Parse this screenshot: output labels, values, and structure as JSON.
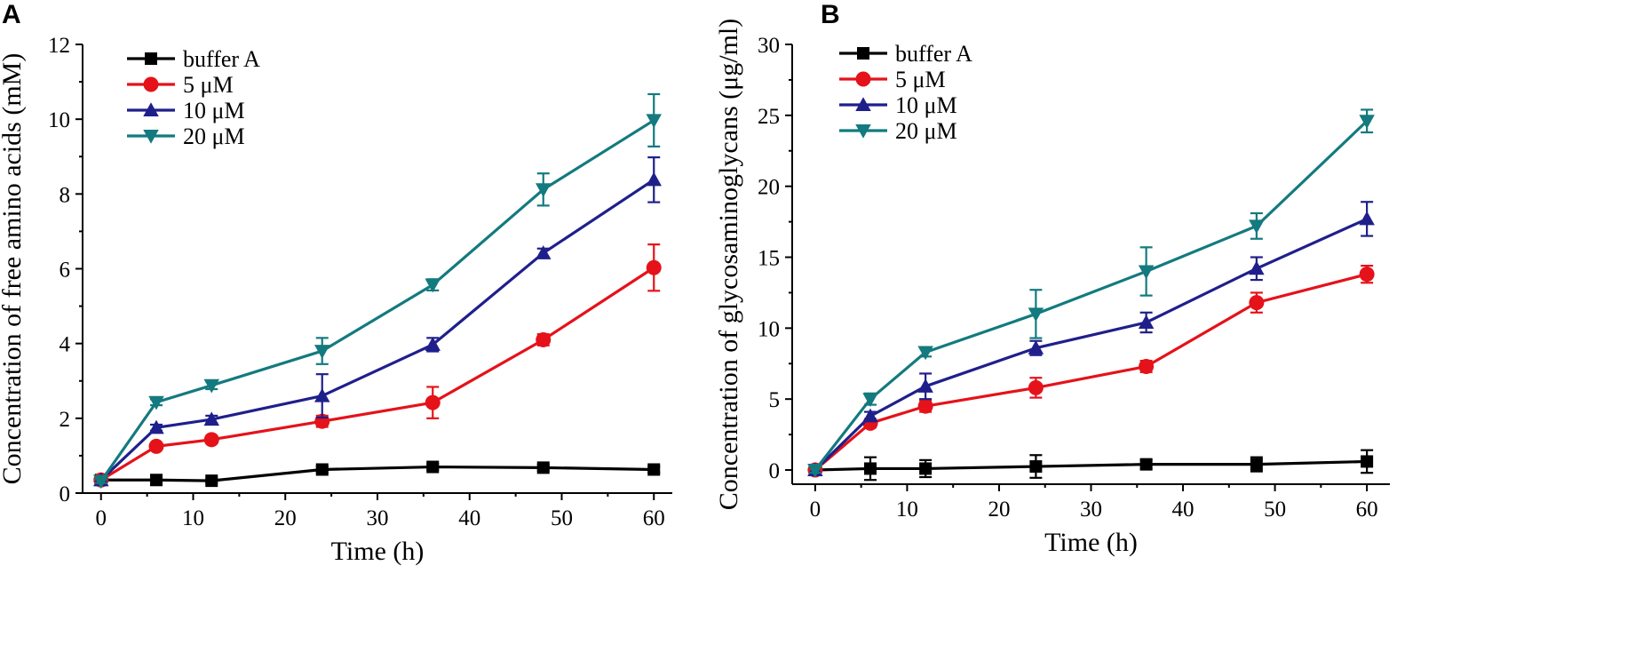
{
  "chart_data": [
    {
      "panel": "A",
      "type": "line",
      "xlabel": "Time (h)",
      "ylabel": "Concentration of free amino acids (mM)",
      "xlim": [
        -2,
        62
      ],
      "ylim": [
        0,
        12
      ],
      "xticks": [
        0,
        10,
        20,
        30,
        40,
        50,
        60
      ],
      "yticks": [
        0,
        2,
        4,
        6,
        8,
        10,
        12
      ],
      "x": [
        0,
        6,
        12,
        24,
        36,
        48,
        60
      ],
      "legend_position": "top-left",
      "series": [
        {
          "name": "buffer A",
          "color": "#000000",
          "marker": "square",
          "values": [
            0.35,
            0.35,
            0.33,
            0.63,
            0.7,
            0.68,
            0.63
          ],
          "errors": [
            0.05,
            0.05,
            0.05,
            0.08,
            0.08,
            0.08,
            0.08
          ]
        },
        {
          "name": "5 μM",
          "color": "#e5121a",
          "marker": "circle",
          "values": [
            0.35,
            1.25,
            1.43,
            1.92,
            2.42,
            4.1,
            6.03
          ],
          "errors": [
            0.05,
            0.08,
            0.1,
            0.15,
            0.42,
            0.15,
            0.62
          ]
        },
        {
          "name": "10 μM",
          "color": "#1f1f8c",
          "marker": "triangle-up",
          "values": [
            0.35,
            1.75,
            1.97,
            2.6,
            3.97,
            6.42,
            8.38
          ],
          "errors": [
            0.05,
            0.08,
            0.1,
            0.58,
            0.18,
            0.12,
            0.6
          ]
        },
        {
          "name": "20 μM",
          "color": "#137a7f",
          "marker": "triangle-down",
          "values": [
            0.32,
            2.43,
            2.88,
            3.8,
            5.57,
            8.12,
            9.97
          ],
          "errors": [
            0.05,
            0.08,
            0.1,
            0.35,
            0.15,
            0.43,
            0.7
          ]
        }
      ]
    },
    {
      "panel": "B",
      "type": "line",
      "xlabel": "Time (h)",
      "ylabel": "Concentration of glycosaminoglycans (μg/ml)",
      "xlim": [
        -2.5,
        62.5
      ],
      "ylim": [
        -1,
        30
      ],
      "xticks": [
        0,
        10,
        20,
        30,
        40,
        50,
        60
      ],
      "yticks": [
        0,
        5,
        10,
        15,
        20,
        25,
        30
      ],
      "x": [
        0,
        6,
        12,
        24,
        36,
        48,
        60
      ],
      "legend_position": "top-left",
      "series": [
        {
          "name": "buffer A",
          "color": "#000000",
          "marker": "square",
          "values": [
            0.0,
            0.1,
            0.1,
            0.25,
            0.4,
            0.4,
            0.6
          ],
          "errors": [
            0.2,
            0.8,
            0.6,
            0.8,
            0.3,
            0.5,
            0.8
          ]
        },
        {
          "name": "5 μM",
          "color": "#e5121a",
          "marker": "circle",
          "values": [
            0.0,
            3.3,
            4.5,
            5.8,
            7.3,
            11.8,
            13.8
          ],
          "errors": [
            0.2,
            0.3,
            0.4,
            0.7,
            0.4,
            0.7,
            0.6
          ]
        },
        {
          "name": "10 μM",
          "color": "#1f1f8c",
          "marker": "triangle-up",
          "values": [
            0.0,
            3.8,
            5.9,
            8.6,
            10.4,
            14.2,
            17.7
          ],
          "errors": [
            0.2,
            0.3,
            0.9,
            0.5,
            0.7,
            0.8,
            1.2
          ]
        },
        {
          "name": "20 μM",
          "color": "#137a7f",
          "marker": "triangle-down",
          "values": [
            0.0,
            5.0,
            8.3,
            11.0,
            14.0,
            17.2,
            24.6
          ],
          "errors": [
            0.2,
            0.4,
            0.3,
            1.7,
            1.7,
            0.9,
            0.8
          ]
        }
      ]
    }
  ]
}
